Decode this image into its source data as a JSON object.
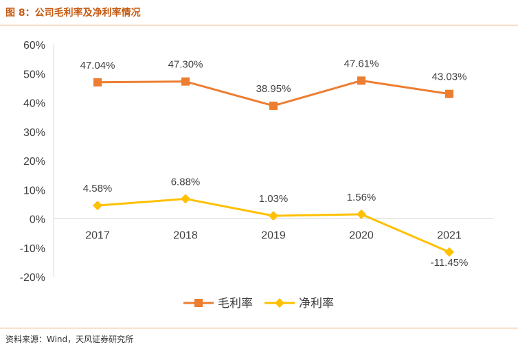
{
  "figure": {
    "title": "图 8：公司毛利率及净利率情况",
    "source": "资料来源：Wind，天风证券研究所"
  },
  "colors": {
    "gross": "#ed7d31",
    "net": "#ffc000",
    "axis": "#d9d9d9",
    "text": "#404040",
    "title": "#c55a11"
  },
  "chart_data": {
    "type": "line",
    "title": "公司毛利率及净利率情况",
    "categories": [
      "2017",
      "2018",
      "2019",
      "2020",
      "2021"
    ],
    "ylim": [
      -20,
      60
    ],
    "yticks": [
      -20,
      -10,
      0,
      10,
      20,
      30,
      40,
      50,
      60
    ],
    "ytick_labels": [
      "-20%",
      "-10%",
      "0%",
      "10%",
      "20%",
      "30%",
      "40%",
      "50%",
      "60%"
    ],
    "grid": false,
    "legend": "bottom",
    "series": [
      {
        "name": "毛利率",
        "marker": "square",
        "values": [
          47.04,
          47.3,
          38.95,
          47.61,
          43.03
        ],
        "labels": [
          "47.04%",
          "47.30%",
          "38.95%",
          "47.61%",
          "43.03%"
        ]
      },
      {
        "name": "净利率",
        "marker": "diamond",
        "values": [
          4.58,
          6.88,
          1.03,
          1.56,
          -11.45
        ],
        "labels": [
          "4.58%",
          "6.88%",
          "1.03%",
          "1.56%",
          "-11.45%"
        ]
      }
    ]
  }
}
